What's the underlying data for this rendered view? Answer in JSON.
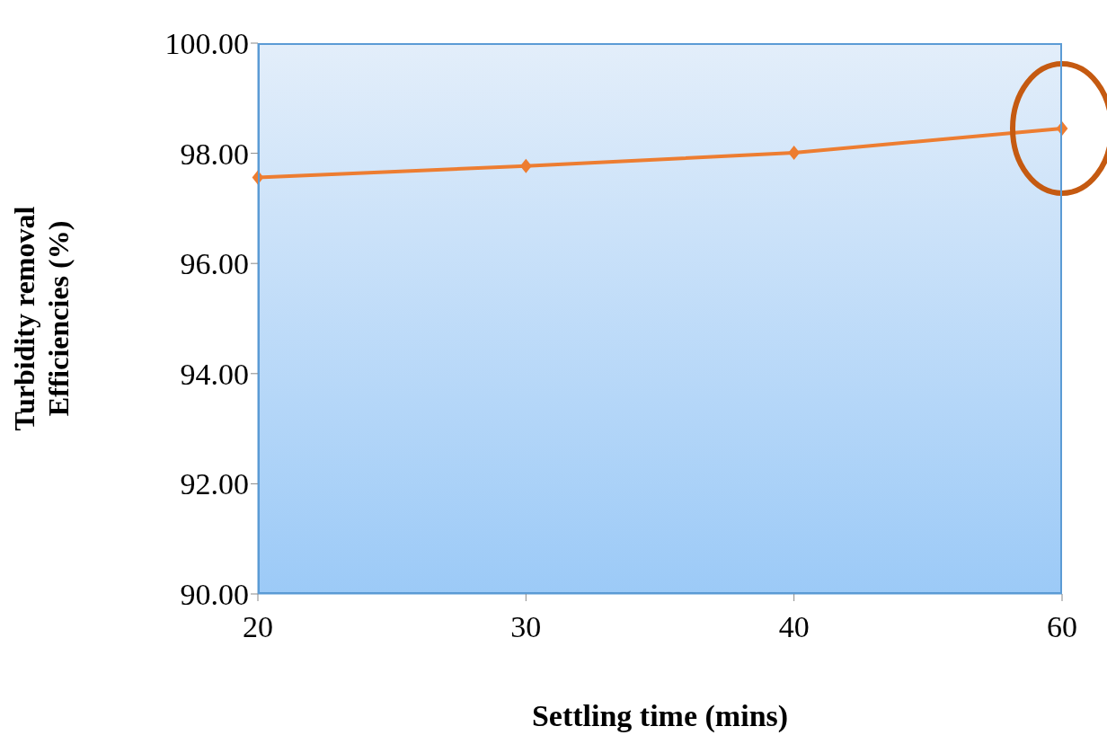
{
  "chart_data": {
    "type": "line",
    "xlabel": "Settling time (mins)",
    "ylabel": "Turbidity removal\nEfficiencies (%)",
    "categories": [
      "20",
      "30",
      "40",
      "60"
    ],
    "series": [
      {
        "color": "#ed7d31",
        "values": [
          97.56,
          97.77,
          98.01,
          98.45
        ]
      }
    ],
    "ylim": [
      90,
      100
    ],
    "yticks": [
      {
        "value": 90,
        "label": "90.00"
      },
      {
        "value": 92,
        "label": "92.00"
      },
      {
        "value": 94,
        "label": "94.00"
      },
      {
        "value": 96,
        "label": "96.00"
      },
      {
        "value": 98,
        "label": "98.00"
      },
      {
        "value": 100,
        "label": "100.00"
      }
    ],
    "marker": "diamond",
    "line_style": "solid",
    "legend": false
  }
}
